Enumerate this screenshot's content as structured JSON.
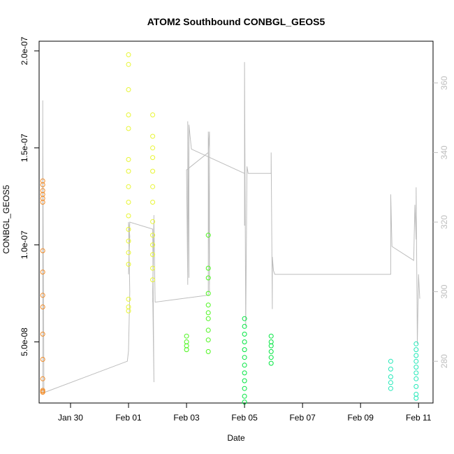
{
  "chart_data": {
    "type": "scatter",
    "title": "ATOM2 Southbound CONBGL_GEOS5",
    "xlabel": "Date",
    "ylabel": "CONBGL_GEOS5",
    "x_ticks": [
      "Jan 30",
      "Feb 01",
      "Feb 03",
      "Feb 05",
      "Feb 07",
      "Feb 09",
      "Feb 11"
    ],
    "y_ticks": [
      "5.0e-08",
      "1.0e-07",
      "1.5e-07",
      "2.0e-07"
    ],
    "y_ticks_values": [
      5e-08,
      1e-07,
      1.5e-07,
      2e-07
    ],
    "y_right_ticks": [
      "280",
      "300",
      "320",
      "340",
      "360"
    ],
    "y_right_values": [
      280,
      300,
      320,
      340,
      360
    ],
    "xlim": [
      "2017-01-28T22:00",
      "2017-02-11T12:00"
    ],
    "ylim": [
      1.85e-08,
      2.05e-07
    ],
    "ylim_right": [
      268,
      372
    ],
    "grid": false,
    "series": [
      {
        "marker": "open-circle",
        "colors": [
          "#f28c28",
          "#e8f534",
          "#4cf51d",
          "#00e640",
          "#22e8b8"
        ],
        "points": [
          [
            "2017-01-29T01:00",
            1.33e-07,
            0
          ],
          [
            "2017-01-29T01:00",
            1.31e-07,
            0
          ],
          [
            "2017-01-29T01:00",
            1.28e-07,
            0
          ],
          [
            "2017-01-29T01:00",
            1.26e-07,
            0
          ],
          [
            "2017-01-29T01:00",
            1.24e-07,
            0
          ],
          [
            "2017-01-29T01:00",
            1.22e-07,
            0
          ],
          [
            "2017-01-29T01:00",
            9.7e-08,
            0
          ],
          [
            "2017-01-29T01:00",
            8.6e-08,
            0
          ],
          [
            "2017-01-29T01:00",
            7.4e-08,
            0
          ],
          [
            "2017-01-29T01:00",
            6.8e-08,
            0
          ],
          [
            "2017-01-29T01:00",
            5.4e-08,
            0
          ],
          [
            "2017-01-29T01:00",
            4.1e-08,
            0
          ],
          [
            "2017-01-29T01:00",
            3.1e-08,
            0
          ],
          [
            "2017-01-29T01:00",
            2.5e-08,
            0
          ],
          [
            "2017-01-29T01:00",
            2.45e-08,
            0
          ],
          [
            "2017-01-29T01:00",
            2.4e-08,
            0
          ],
          [
            "2017-02-01T00:00",
            1.98e-07,
            1
          ],
          [
            "2017-02-01T00:00",
            1.93e-07,
            1
          ],
          [
            "2017-02-01T00:00",
            1.8e-07,
            1
          ],
          [
            "2017-02-01T00:00",
            1.67e-07,
            1
          ],
          [
            "2017-02-01T00:00",
            1.6e-07,
            1
          ],
          [
            "2017-02-01T00:00",
            1.44e-07,
            1
          ],
          [
            "2017-02-01T00:00",
            1.38e-07,
            1
          ],
          [
            "2017-02-01T00:00",
            1.3e-07,
            1
          ],
          [
            "2017-02-01T00:00",
            1.22e-07,
            1
          ],
          [
            "2017-02-01T00:00",
            1.15e-07,
            1
          ],
          [
            "2017-02-01T00:00",
            1.08e-07,
            1
          ],
          [
            "2017-02-01T00:00",
            1.02e-07,
            1
          ],
          [
            "2017-02-01T00:00",
            9.6e-08,
            1
          ],
          [
            "2017-02-01T00:00",
            9e-08,
            1
          ],
          [
            "2017-02-01T00:00",
            7.2e-08,
            1
          ],
          [
            "2017-02-01T00:00",
            6.8e-08,
            1
          ],
          [
            "2017-02-01T00:00",
            6.6e-08,
            1
          ],
          [
            "2017-02-01T20:00",
            1.67e-07,
            1
          ],
          [
            "2017-02-01T20:00",
            1.56e-07,
            1
          ],
          [
            "2017-02-01T20:00",
            1.5e-07,
            1
          ],
          [
            "2017-02-01T20:00",
            1.45e-07,
            1
          ],
          [
            "2017-02-01T20:00",
            1.38e-07,
            1
          ],
          [
            "2017-02-01T20:00",
            1.3e-07,
            1
          ],
          [
            "2017-02-01T20:00",
            1.22e-07,
            1
          ],
          [
            "2017-02-01T20:00",
            1.12e-07,
            1
          ],
          [
            "2017-02-01T20:00",
            1.05e-07,
            1
          ],
          [
            "2017-02-01T20:00",
            1e-07,
            1
          ],
          [
            "2017-02-01T20:00",
            9.5e-08,
            1
          ],
          [
            "2017-02-01T20:00",
            8.8e-08,
            1
          ],
          [
            "2017-02-01T20:00",
            8.2e-08,
            1
          ],
          [
            "2017-02-03T18:00",
            1.05e-07,
            2
          ],
          [
            "2017-02-03T18:00",
            8.8e-08,
            2
          ],
          [
            "2017-02-03T18:00",
            8.3e-08,
            2
          ],
          [
            "2017-02-03T18:00",
            7.5e-08,
            2
          ],
          [
            "2017-02-03T18:00",
            6.9e-08,
            2
          ],
          [
            "2017-02-03T18:00",
            6.5e-08,
            2
          ],
          [
            "2017-02-03T18:00",
            6.2e-08,
            2
          ],
          [
            "2017-02-03T18:00",
            5.6e-08,
            2
          ],
          [
            "2017-02-03T18:00",
            5.1e-08,
            2
          ],
          [
            "2017-02-03T18:00",
            4.5e-08,
            2
          ],
          [
            "2017-02-03T00:00",
            5.3e-08,
            2
          ],
          [
            "2017-02-03T00:00",
            5e-08,
            2
          ],
          [
            "2017-02-03T00:00",
            4.8e-08,
            2
          ],
          [
            "2017-02-03T00:00",
            4.6e-08,
            2
          ],
          [
            "2017-02-05T00:00",
            6.2e-08,
            3
          ],
          [
            "2017-02-05T00:00",
            5.8e-08,
            3
          ],
          [
            "2017-02-05T00:00",
            5.4e-08,
            3
          ],
          [
            "2017-02-05T00:00",
            5e-08,
            3
          ],
          [
            "2017-02-05T00:00",
            4.6e-08,
            3
          ],
          [
            "2017-02-05T00:00",
            4.2e-08,
            3
          ],
          [
            "2017-02-05T00:00",
            3.8e-08,
            3
          ],
          [
            "2017-02-05T00:00",
            3.4e-08,
            3
          ],
          [
            "2017-02-05T00:00",
            3e-08,
            3
          ],
          [
            "2017-02-05T00:00",
            2.6e-08,
            3
          ],
          [
            "2017-02-05T00:00",
            2.2e-08,
            3
          ],
          [
            "2017-02-05T00:00",
            1.9e-08,
            3
          ],
          [
            "2017-02-05T22:00",
            5.3e-08,
            3
          ],
          [
            "2017-02-05T22:00",
            5e-08,
            3
          ],
          [
            "2017-02-05T22:00",
            4.8e-08,
            3
          ],
          [
            "2017-02-05T22:00",
            4.5e-08,
            3
          ],
          [
            "2017-02-05T22:00",
            4.2e-08,
            3
          ],
          [
            "2017-02-05T22:00",
            3.9e-08,
            3
          ],
          [
            "2017-02-10T01:00",
            4e-08,
            4
          ],
          [
            "2017-02-10T01:00",
            3.6e-08,
            4
          ],
          [
            "2017-02-10T01:00",
            3.2e-08,
            4
          ],
          [
            "2017-02-10T01:00",
            2.9e-08,
            4
          ],
          [
            "2017-02-10T01:00",
            2.6e-08,
            4
          ],
          [
            "2017-02-10T22:00",
            4.9e-08,
            4
          ],
          [
            "2017-02-10T22:00",
            4.6e-08,
            4
          ],
          [
            "2017-02-10T22:00",
            4.3e-08,
            4
          ],
          [
            "2017-02-10T22:00",
            4e-08,
            4
          ],
          [
            "2017-02-10T22:00",
            3.7e-08,
            4
          ],
          [
            "2017-02-10T22:00",
            3.4e-08,
            4
          ],
          [
            "2017-02-10T22:00",
            3.1e-08,
            4
          ],
          [
            "2017-02-10T22:00",
            2.7e-08,
            4
          ],
          [
            "2017-02-10T22:00",
            2.3e-08,
            4
          ],
          [
            "2017-02-10T22:00",
            2.1e-08,
            4
          ]
        ]
      },
      {
        "marker": "line",
        "color": "#bdbdbd",
        "axis": "right",
        "points": [
          [
            "2017-01-29T01:00",
            271
          ],
          [
            "2017-01-29T01:00",
            355
          ],
          [
            "2017-01-29T01:00",
            280
          ],
          [
            "2017-01-29T01:00",
            350
          ],
          [
            "2017-01-29T02:00",
            271
          ],
          [
            "2017-01-31T23:00",
            280
          ],
          [
            "2017-02-01T00:00",
            283
          ],
          [
            "2017-02-01T01:00",
            300
          ],
          [
            "2017-02-01T00:00",
            320
          ],
          [
            "2017-02-01T01:00",
            316
          ],
          [
            "2017-02-01T00:00",
            305
          ],
          [
            "2017-02-01T01:00",
            320
          ],
          [
            "2017-02-01T20:00",
            318
          ],
          [
            "2017-02-01T21:00",
            274
          ],
          [
            "2017-02-01T20:00",
            300
          ],
          [
            "2017-02-01T21:00",
            322
          ],
          [
            "2017-02-01T20:00",
            297
          ],
          [
            "2017-02-01T21:00",
            320
          ],
          [
            "2017-02-01T22:00",
            297
          ],
          [
            "2017-02-03T18:00",
            299
          ],
          [
            "2017-02-03T18:00",
            345
          ],
          [
            "2017-02-03T19:00",
            300
          ],
          [
            "2017-02-03T18:00",
            346
          ],
          [
            "2017-02-03T19:00",
            302
          ],
          [
            "2017-02-03T19:00",
            346
          ],
          [
            "2017-02-03T18:00",
            340
          ],
          [
            "2017-02-03T00:00",
            335
          ],
          [
            "2017-02-03T01:00",
            302
          ],
          [
            "2017-02-03T01:00",
            349
          ],
          [
            "2017-02-03T02:00",
            304
          ],
          [
            "2017-02-03T02:00",
            348
          ],
          [
            "2017-02-03T04:00",
            341
          ],
          [
            "2017-02-05T00:00",
            334
          ],
          [
            "2017-02-05T00:00",
            319
          ],
          [
            "2017-02-05T00:00",
            366
          ],
          [
            "2017-02-05T01:00",
            290
          ],
          [
            "2017-02-05T02:00",
            336
          ],
          [
            "2017-02-05T03:00",
            334
          ],
          [
            "2017-02-05T22:00",
            334
          ],
          [
            "2017-02-05T22:00",
            340
          ],
          [
            "2017-02-05T23:00",
            295
          ],
          [
            "2017-02-05T23:00",
            310
          ],
          [
            "2017-02-06T00:00",
            306
          ],
          [
            "2017-02-06T01:00",
            305
          ],
          [
            "2017-02-10T01:00",
            305
          ],
          [
            "2017-02-10T01:00",
            310
          ],
          [
            "2017-02-10T01:00",
            328
          ],
          [
            "2017-02-10T02:00",
            313
          ],
          [
            "2017-02-10T20:00",
            309
          ],
          [
            "2017-02-10T21:00",
            325
          ],
          [
            "2017-02-10T22:00",
            315
          ],
          [
            "2017-02-10T22:00",
            330
          ],
          [
            "2017-02-10T23:00",
            285
          ],
          [
            "2017-02-11T00:00",
            305
          ],
          [
            "2017-02-11T01:00",
            298
          ]
        ]
      }
    ]
  }
}
